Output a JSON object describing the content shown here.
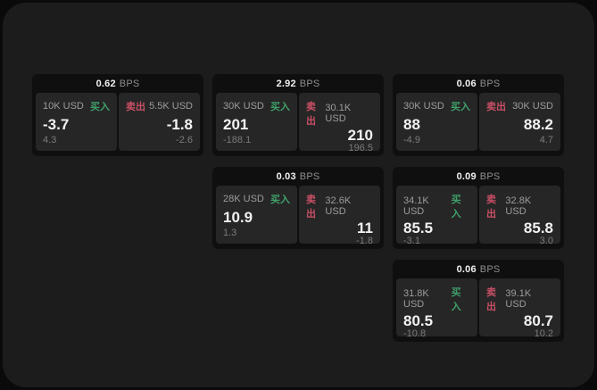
{
  "labels": {
    "bps": "BPS",
    "buy": "买入",
    "sell": "卖出"
  },
  "colors": {
    "page_bg": "#0a0a0a",
    "surface_bg": "#1c1c1c",
    "card_bg": "#0f0f0f",
    "panel_bg": "#262626",
    "buy_accent": "#3fa06a",
    "sell_accent": "#c94f66",
    "primary_text": "#f2f2f2",
    "secondary_text": "#9c9c9c",
    "dim_text": "#7b7b7b"
  },
  "cards": [
    {
      "bps": "0.62",
      "buy": {
        "size": "10K USD",
        "price": "-3.7",
        "delta": "4.3"
      },
      "sell": {
        "size": "5.5K USD",
        "price": "-1.8",
        "delta": "-2.6"
      }
    },
    {
      "bps": "2.92",
      "buy": {
        "size": "30K USD",
        "price": "201",
        "delta": "-188.1"
      },
      "sell": {
        "size": "30.1K USD",
        "price": "210",
        "delta": "196.5"
      }
    },
    {
      "bps": "0.06",
      "buy": {
        "size": "30K USD",
        "price": "88",
        "delta": "-4.9"
      },
      "sell": {
        "size": "30K USD",
        "price": "88.2",
        "delta": "4.7"
      }
    },
    {
      "bps": "0.03",
      "buy": {
        "size": "28K USD",
        "price": "10.9",
        "delta": "1.3"
      },
      "sell": {
        "size": "32.6K USD",
        "price": "11",
        "delta": "-1.8"
      }
    },
    {
      "bps": "0.09",
      "buy": {
        "size": "34.1K USD",
        "price": "85.5",
        "delta": "-3.1"
      },
      "sell": {
        "size": "32.8K USD",
        "price": "85.8",
        "delta": "3.0"
      }
    },
    {
      "bps": "0.06",
      "buy": {
        "size": "31.8K USD",
        "price": "80.5",
        "delta": "-10.8"
      },
      "sell": {
        "size": "39.1K USD",
        "price": "80.7",
        "delta": "10.2"
      }
    }
  ]
}
